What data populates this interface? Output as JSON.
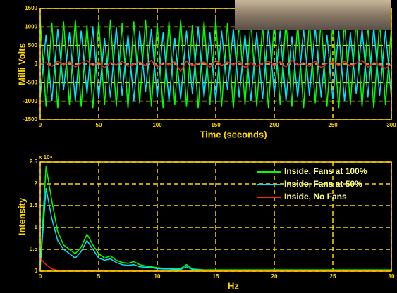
{
  "chart_data": [
    {
      "type": "line",
      "xlabel": "Time (seconds)",
      "ylabel": "Milli Volts",
      "xlim": [
        0,
        300
      ],
      "ylim": [
        -1500,
        1500
      ],
      "xticks": [
        0,
        50,
        100,
        150,
        200,
        250,
        300
      ],
      "yticks": [
        -1500,
        -1000,
        -500,
        0,
        500,
        1000,
        1500
      ],
      "grid": true,
      "x": [
        0,
        5,
        10,
        15,
        20,
        25,
        30,
        35,
        40,
        45,
        50,
        55,
        60,
        65,
        70,
        75,
        80,
        85,
        90,
        95,
        100,
        105,
        110,
        115,
        120,
        125,
        130,
        135,
        140,
        145,
        150,
        155,
        160,
        165,
        170,
        175,
        180,
        185,
        190,
        195,
        200,
        205,
        210,
        215,
        220,
        225,
        230,
        235,
        240,
        245,
        250,
        255,
        260,
        265,
        270,
        275,
        280,
        285,
        290,
        295,
        300
      ],
      "series": [
        {
          "color": "#00ff00",
          "values": [
            1200,
            -1150,
            1100,
            -1200,
            1150,
            -1100,
            1200,
            -1150,
            1050,
            -1200,
            1150,
            -1100,
            1200,
            -1150,
            1100,
            -1200,
            1150,
            -1050,
            1200,
            -1150,
            1100,
            -1200,
            1150,
            -1100,
            1200,
            -1150,
            1050,
            -1200,
            1150,
            -1100,
            1200,
            -1150,
            1100,
            -1200,
            1150,
            -1100,
            1200,
            -1150,
            1050,
            -1200,
            1150,
            -1100,
            1200,
            -1150,
            1100,
            -1200,
            1150,
            -1050,
            1200,
            -1150,
            1100,
            -1200,
            1150,
            -1100,
            1200,
            -1150,
            1050,
            -1200,
            1150,
            -1100,
            1000
          ]
        },
        {
          "color": "#00e5ff",
          "values": [
            -900,
            800,
            -1000,
            950,
            -700,
            850,
            -1000,
            900,
            -800,
            1000,
            -950,
            700,
            -900,
            1000,
            -850,
            800,
            -1000,
            900,
            -750,
            950,
            -900,
            850,
            -1000,
            700,
            -950,
            900,
            -800,
            1000,
            -900,
            850,
            -1000,
            900,
            -700,
            950,
            -900,
            800,
            -1000,
            850,
            -950,
            1000,
            -800,
            900,
            -1000,
            750,
            -900,
            950,
            -850,
            1000,
            -900,
            800,
            -950,
            900,
            -1000,
            850,
            -800,
            950,
            -900,
            1000,
            -850,
            900,
            -900
          ]
        },
        {
          "color": "#ff2020",
          "values": [
            0,
            40,
            -60,
            80,
            -20,
            60,
            -80,
            20,
            100,
            -40,
            60,
            -100,
            40,
            -20,
            80,
            -60,
            0,
            60,
            -40,
            100,
            -80,
            40,
            -20,
            60,
            -200,
            80,
            -40,
            20,
            60,
            -80,
            100,
            -40,
            60,
            -20,
            80,
            -100,
            40,
            -60,
            20,
            80,
            -40,
            60,
            -80,
            100,
            -20,
            40,
            -60,
            80,
            -100,
            20,
            60,
            -40,
            80,
            -60,
            20,
            100,
            -80,
            40,
            -20,
            -120,
            0
          ]
        }
      ]
    },
    {
      "type": "line",
      "xlabel": "Hz",
      "ylabel": "Intensity",
      "y_multiplier": "x 10⁴",
      "xlim": [
        0,
        30
      ],
      "ylim": [
        0,
        2.5
      ],
      "xticks": [
        0,
        5,
        10,
        15,
        20,
        25,
        30
      ],
      "yticks": [
        0,
        0.5,
        1,
        1.5,
        2,
        2.5
      ],
      "grid": true,
      "legend": "upper right",
      "x": [
        0,
        0.5,
        1,
        1.5,
        2,
        2.5,
        3,
        3.5,
        4,
        4.5,
        5,
        5.5,
        6,
        6.5,
        7,
        7.5,
        8,
        8.5,
        9,
        9.5,
        10,
        10.5,
        11,
        11.5,
        12,
        12.5,
        13,
        13.5,
        14,
        14.5,
        15,
        15.5,
        16,
        16.5,
        17,
        17.5,
        18,
        18.5,
        19,
        19.5,
        20,
        20.5,
        21,
        21.5,
        22,
        22.5,
        23,
        23.5,
        24,
        24.5,
        25,
        25.5,
        26,
        26.5,
        27,
        27.5,
        28,
        28.5,
        29,
        29.5,
        30
      ],
      "series": [
        {
          "name": "Inside, Fans at 100%",
          "color": "#00ff00",
          "values": [
            0.1,
            2.4,
            1.6,
            0.9,
            0.6,
            0.5,
            0.4,
            0.55,
            0.85,
            0.6,
            0.4,
            0.3,
            0.35,
            0.25,
            0.2,
            0.18,
            0.22,
            0.15,
            0.12,
            0.1,
            0.08,
            0.07,
            0.06,
            0.05,
            0.06,
            0.15,
            0.05,
            0.04,
            0.03,
            0.03,
            0.03,
            0.03,
            0.03,
            0.03,
            0.03,
            0.03,
            0.03,
            0.03,
            0.03,
            0.03,
            0.03,
            0.03,
            0.03,
            0.03,
            0.03,
            0.03,
            0.03,
            0.03,
            0.03,
            0.03,
            0.03,
            0.03,
            0.03,
            0.03,
            0.03,
            0.03,
            0.03,
            0.03,
            0.03,
            0.03,
            0.03
          ]
        },
        {
          "name": "Inside, Fans at 50%",
          "color": "#00e5ff",
          "values": [
            0.05,
            1.9,
            1.2,
            0.7,
            0.5,
            0.4,
            0.3,
            0.45,
            0.7,
            0.5,
            0.3,
            0.25,
            0.28,
            0.2,
            0.15,
            0.13,
            0.15,
            0.1,
            0.09,
            0.08,
            0.06,
            0.05,
            0.05,
            0.04,
            0.04,
            0.1,
            0.04,
            0.03,
            0.02,
            0.02,
            0.02,
            0.02,
            0.02,
            0.02,
            0.02,
            0.02,
            0.02,
            0.02,
            0.02,
            0.02,
            0.02,
            0.02,
            0.02,
            0.02,
            0.02,
            0.02,
            0.02,
            0.02,
            0.02,
            0.02,
            0.02,
            0.02,
            0.02,
            0.02,
            0.02,
            0.02,
            0.02,
            0.02,
            0.02,
            0.02,
            0.02
          ]
        },
        {
          "name": "Inside, No Fans",
          "color": "#ff2020",
          "values": [
            0.3,
            0.15,
            0.05,
            0.02,
            0.01,
            0.01,
            0.01,
            0.01,
            0.01,
            0.01,
            0.01,
            0.01,
            0.01,
            0.01,
            0.01,
            0.01,
            0.01,
            0.01,
            0.01,
            0.01,
            0.01,
            0.01,
            0.01,
            0.01,
            0.01,
            0.01,
            0.01,
            0.01,
            0.01,
            0.01,
            0.01,
            0.01,
            0.01,
            0.01,
            0.01,
            0.01,
            0.01,
            0.01,
            0.01,
            0.01,
            0.01,
            0.01,
            0.01,
            0.01,
            0.01,
            0.01,
            0.01,
            0.01,
            0.01,
            0.01,
            0.01,
            0.01,
            0.01,
            0.01,
            0.01,
            0.01,
            0.01,
            0.01,
            0.01,
            0.01,
            0.01
          ]
        }
      ]
    }
  ]
}
